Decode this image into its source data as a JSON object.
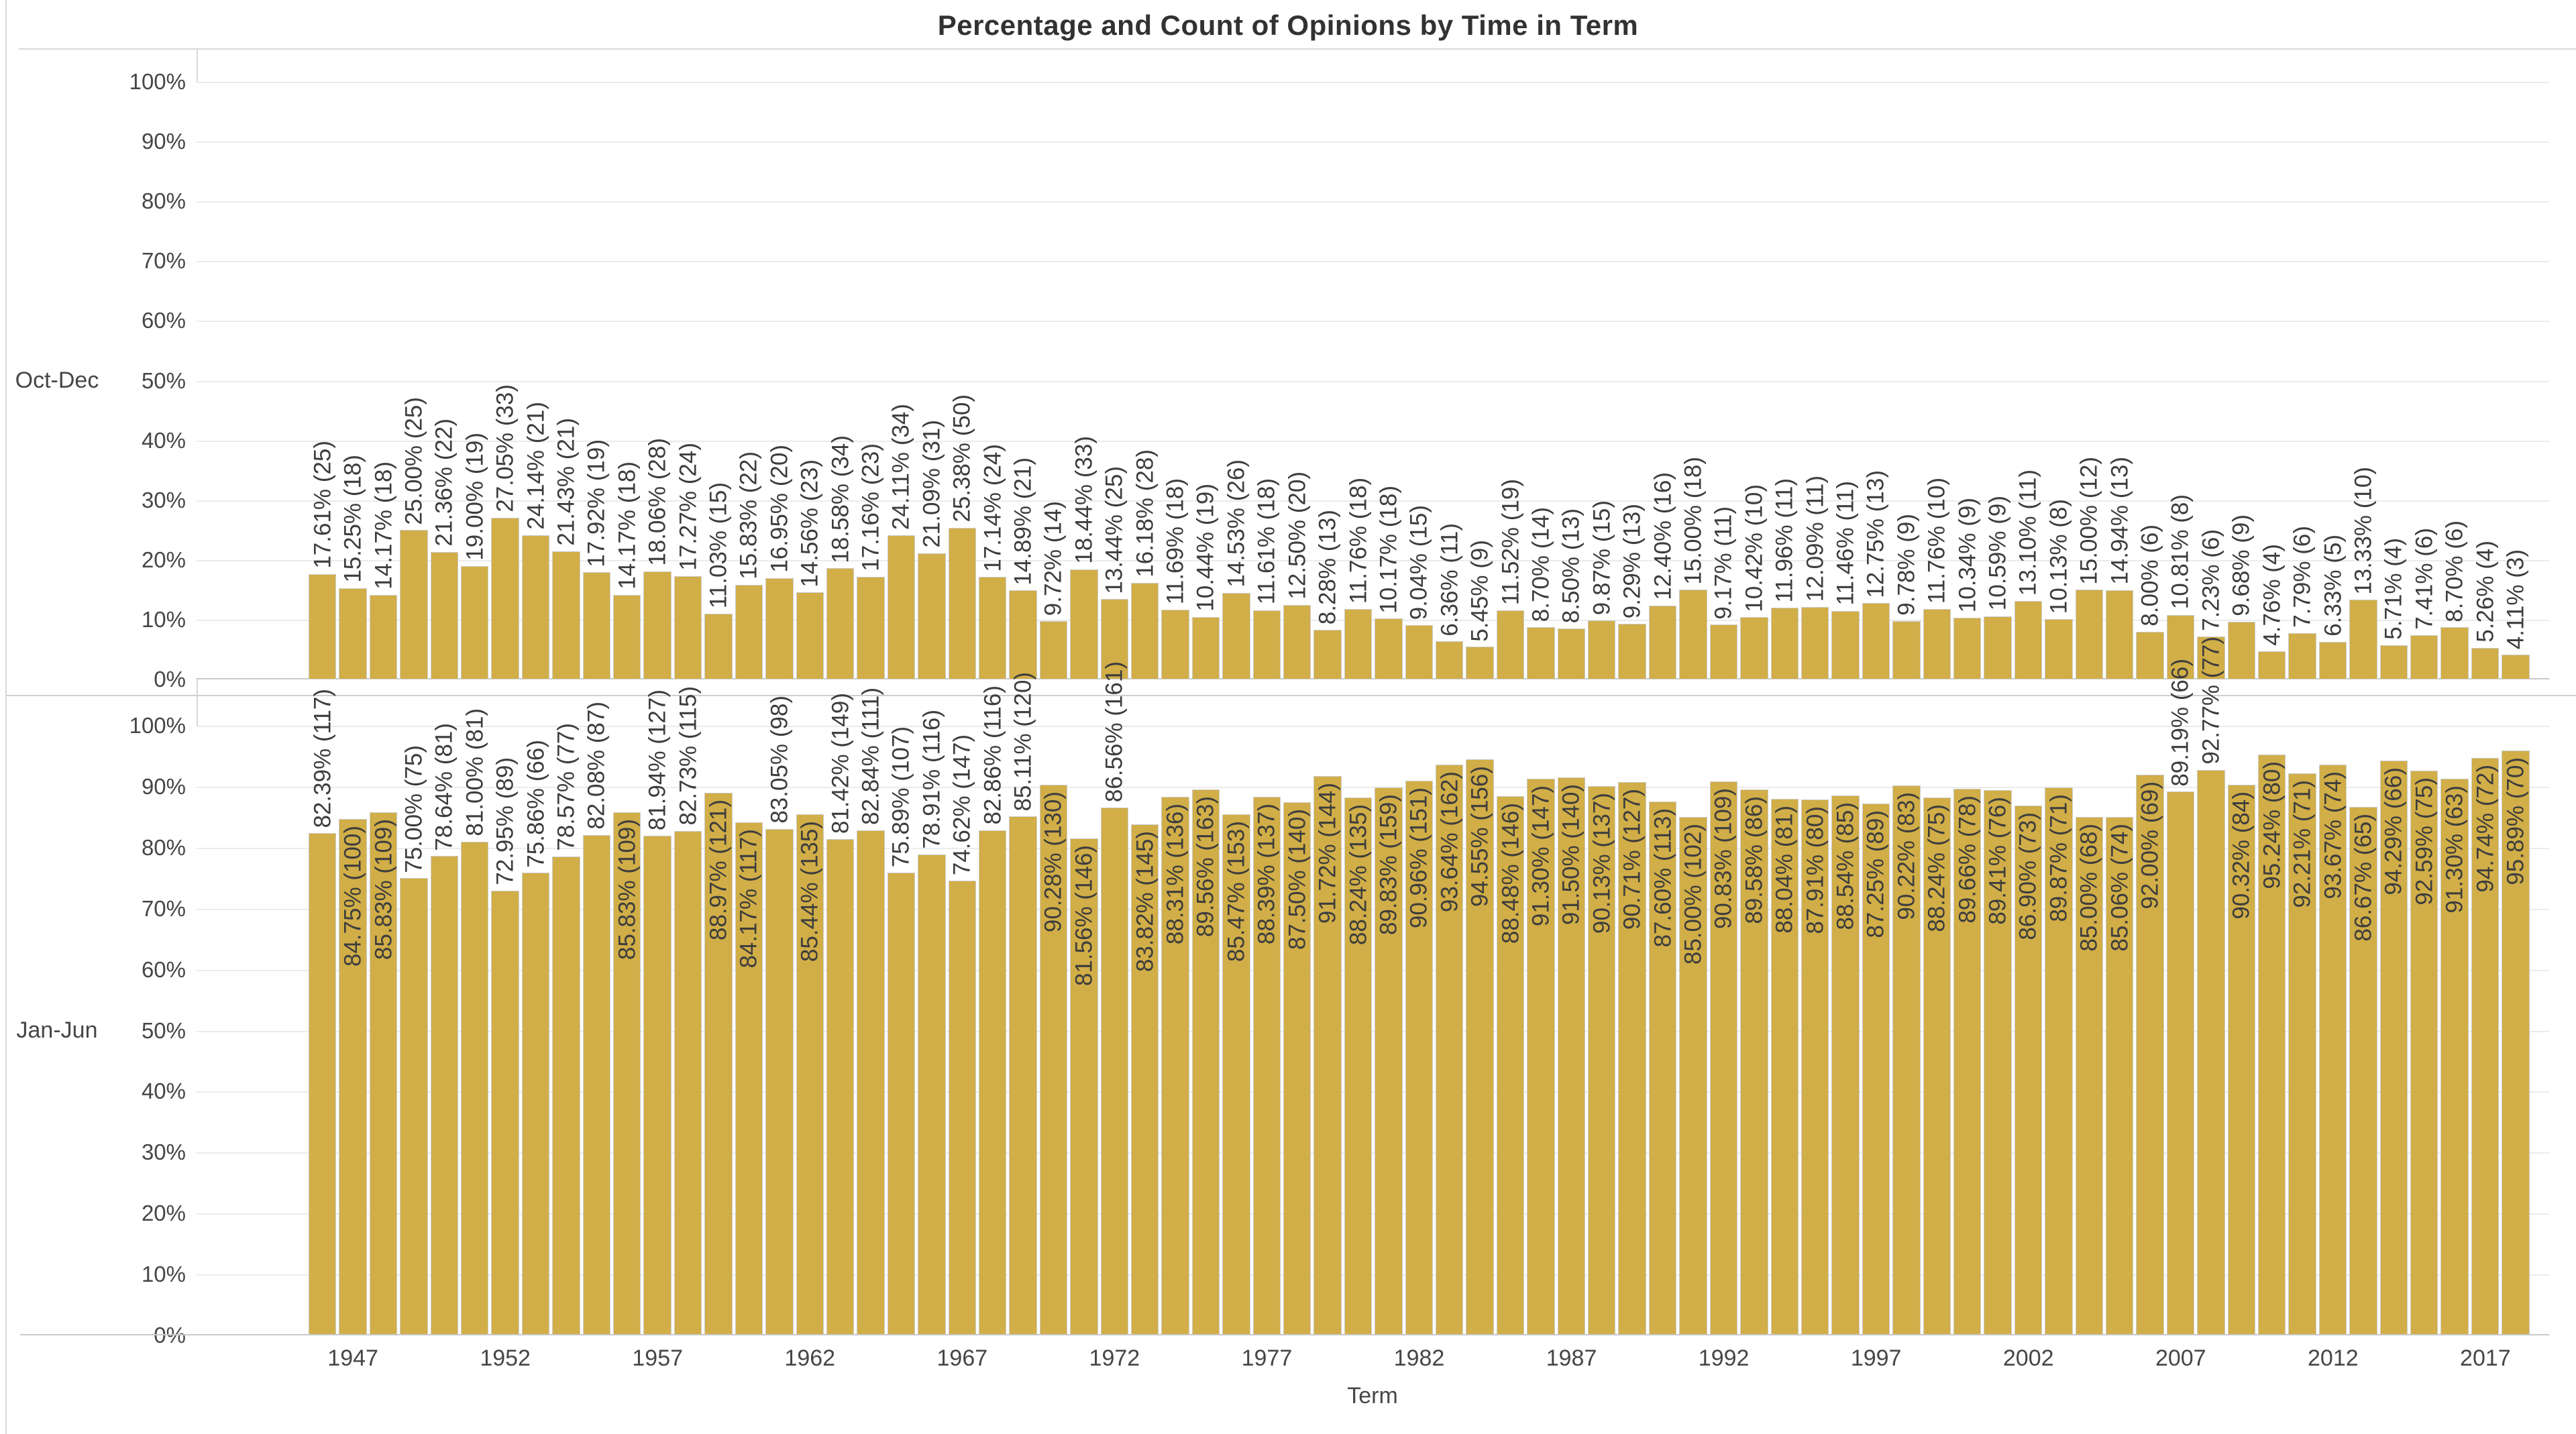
{
  "ui": {
    "title": "Percentage and Count of Opinions by Time in Term",
    "panels": [
      {
        "label": "Oct-Dec"
      },
      {
        "label": "Jan-Jun"
      }
    ],
    "x_axis": {
      "title": "Term",
      "ticks": [
        "1947",
        "1952",
        "1957",
        "1962",
        "1967",
        "1972",
        "1977",
        "1982",
        "1987",
        "1992",
        "1997",
        "2002",
        "2007",
        "2012",
        "2017"
      ]
    },
    "y_axis": {
      "ticks": [
        "0%",
        "10%",
        "20%",
        "30%",
        "40%",
        "50%",
        "60%",
        "70%",
        "80%",
        "90%",
        "100%"
      ]
    }
  },
  "colors": {
    "bar": "#d1ae47",
    "bar_border": "#cccccc",
    "bar_label_text": "#3d3d3d",
    "axis_text": "#464646",
    "gridline": "#ebebeb",
    "axis_line": "#c9c9c9",
    "frame": "#d9d9d9",
    "title_text": "#323232",
    "background": "#ffffff"
  },
  "chart_data": {
    "type": "bar",
    "title": "Percentage and Count of Opinions by Time in Term",
    "xlabel": "Term",
    "ylabel": "",
    "ylim": [
      0,
      100
    ],
    "grid": true,
    "year_start": 1946,
    "year_end": 2018,
    "x_ticks": [
      1947,
      1952,
      1957,
      1962,
      1967,
      1972,
      1977,
      1982,
      1987,
      1992,
      1997,
      2002,
      2007,
      2012,
      2017
    ],
    "label_format": "{pct}% ({count})",
    "series": [
      {
        "name": "Oct-Dec",
        "pct": [
          17.61,
          15.25,
          14.17,
          25.0,
          21.36,
          19.0,
          27.05,
          24.14,
          21.43,
          17.92,
          14.17,
          18.06,
          17.27,
          11.03,
          15.83,
          16.95,
          14.56,
          18.58,
          17.16,
          24.11,
          21.09,
          25.38,
          17.14,
          14.89,
          9.72,
          18.44,
          13.44,
          16.18,
          11.69,
          10.44,
          14.53,
          11.61,
          12.5,
          8.28,
          11.76,
          10.17,
          9.04,
          6.36,
          5.45,
          11.52,
          8.7,
          8.5,
          9.87,
          9.29,
          12.4,
          15.0,
          9.17,
          10.42,
          11.96,
          12.09,
          11.46,
          12.75,
          9.78,
          11.76,
          10.34,
          10.59,
          13.1,
          10.13,
          15.0,
          14.94,
          8.0,
          10.81,
          7.23,
          9.68,
          4.76,
          7.79,
          6.33,
          13.33,
          5.71,
          7.41,
          8.7,
          5.26,
          4.11
        ],
        "count": [
          25,
          18,
          18,
          25,
          22,
          19,
          33,
          21,
          21,
          19,
          18,
          28,
          24,
          15,
          22,
          20,
          23,
          34,
          23,
          34,
          31,
          50,
          24,
          21,
          14,
          33,
          25,
          28,
          18,
          19,
          26,
          18,
          20,
          13,
          18,
          18,
          15,
          11,
          9,
          19,
          14,
          13,
          15,
          13,
          16,
          18,
          11,
          10,
          11,
          11,
          11,
          13,
          9,
          10,
          9,
          9,
          11,
          8,
          12,
          13,
          6,
          8,
          6,
          9,
          4,
          6,
          5,
          10,
          4,
          6,
          6,
          4,
          3
        ],
        "label_placement": "ooooooooooooooooooooooooooooooooooooooooooooooooooooooooooooooooooooooooo"
      },
      {
        "name": "Jan-Jun",
        "pct": [
          82.39,
          84.75,
          85.83,
          75.0,
          78.64,
          81.0,
          72.95,
          75.86,
          78.57,
          82.08,
          85.83,
          81.94,
          82.73,
          88.97,
          84.17,
          83.05,
          85.44,
          81.42,
          82.84,
          75.89,
          78.91,
          74.62,
          82.86,
          85.11,
          90.28,
          81.56,
          86.56,
          83.82,
          88.31,
          89.56,
          85.47,
          88.39,
          87.5,
          91.72,
          88.24,
          89.83,
          90.96,
          93.64,
          94.55,
          88.48,
          91.3,
          91.5,
          90.13,
          90.71,
          87.6,
          85.0,
          90.83,
          89.58,
          88.04,
          87.91,
          88.54,
          87.25,
          90.22,
          88.24,
          89.66,
          89.41,
          86.9,
          89.87,
          85.0,
          85.06,
          92.0,
          89.19,
          92.77,
          90.32,
          95.24,
          92.21,
          93.67,
          86.67,
          94.29,
          92.59,
          91.3,
          94.74,
          95.89
        ],
        "count": [
          117,
          100,
          109,
          75,
          81,
          81,
          89,
          66,
          77,
          87,
          109,
          127,
          115,
          121,
          117,
          98,
          135,
          149,
          111,
          107,
          116,
          147,
          116,
          120,
          130,
          146,
          161,
          145,
          136,
          163,
          153,
          137,
          140,
          144,
          135,
          159,
          151,
          162,
          156,
          146,
          147,
          140,
          137,
          127,
          113,
          102,
          109,
          86,
          81,
          80,
          85,
          89,
          83,
          75,
          78,
          76,
          73,
          71,
          68,
          74,
          69,
          66,
          77,
          84,
          80,
          71,
          74,
          65,
          66,
          75,
          63,
          72,
          70
        ],
        "label_placement": "oiioooooooiooiioioooooooiioiiiiiiiiiiiiiiiiiiiiiiiiiiiiiiiiiiooiiiiiiiiiiiii"
      }
    ]
  }
}
